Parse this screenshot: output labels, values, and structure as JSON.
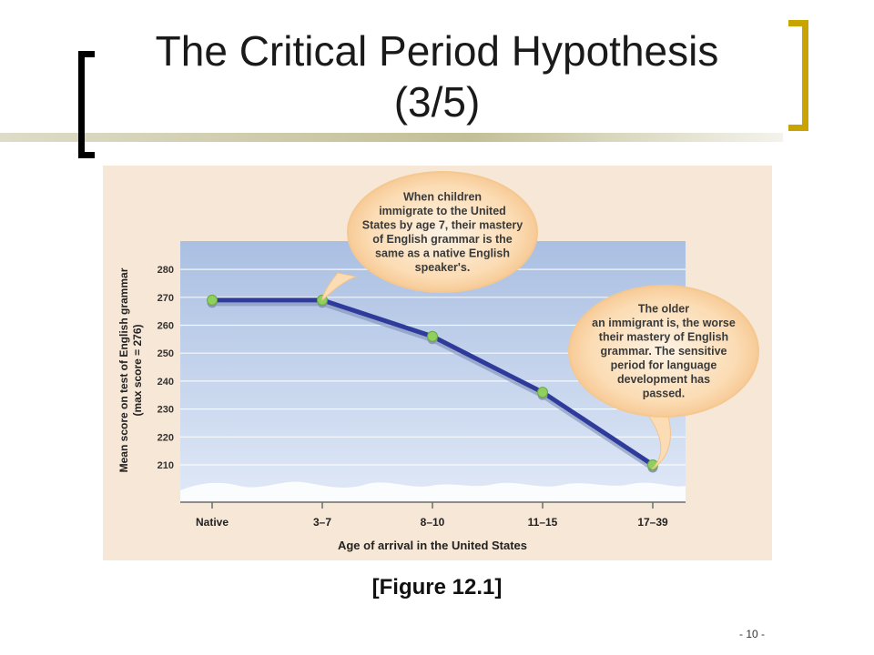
{
  "slide": {
    "title_line1": "The Critical Period Hypothesis",
    "title_line2": "(3/5)",
    "caption": "[Figure 12.1]",
    "page_number": "- 10 -"
  },
  "colors": {
    "figure_bg": "#f7e7d6",
    "plot_top": "#aabfe2",
    "plot_bottom": "#e0e9f7",
    "line": "#2e3b9a",
    "point": "#8fd05d",
    "bubble": "#fbdcb4",
    "bracket_left": "#000000",
    "bracket_right": "#c9a400"
  },
  "chart_data": {
    "type": "line",
    "categories": [
      "Native",
      "3–7",
      "8–10",
      "11–15",
      "17–39"
    ],
    "values": [
      269,
      269,
      256,
      236,
      210
    ],
    "xlabel": "Age of arrival in the United States",
    "ylabel_line1": "Mean score on test of English grammar",
    "ylabel_line2": "(max score = 276)",
    "yticks": [
      210,
      220,
      230,
      240,
      250,
      260,
      270,
      280
    ],
    "ylim": [
      200,
      290
    ],
    "grid": true,
    "axis_break": true,
    "annotations": [
      {
        "anchor_category": "3–7",
        "lines": [
          "When children",
          "immigrate to the United",
          "States by age 7, their mastery",
          "of English grammar is the",
          "same as a native English",
          "speaker's."
        ]
      },
      {
        "anchor_category": "17–39",
        "lines": [
          "The older",
          "an immigrant is, the worse",
          "their mastery of English",
          "grammar. The sensitive",
          "period for language",
          "development has",
          "passed."
        ]
      }
    ]
  }
}
